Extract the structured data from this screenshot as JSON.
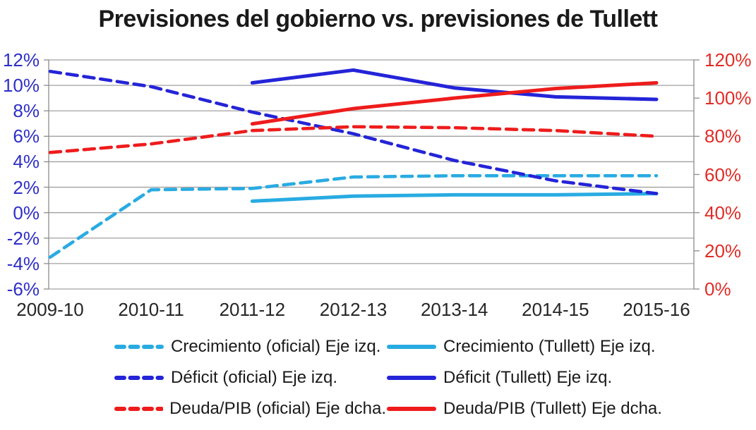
{
  "chart_data": {
    "type": "line",
    "title": "Previsiones del gobierno vs. previsiones de Tullett",
    "categories": [
      "2009-10",
      "2010-11",
      "2011-12",
      "2012-13",
      "2013-14",
      "2014-15",
      "2015-16"
    ],
    "left_axis": {
      "tick_labels": [
        "12%",
        "10%",
        "8%",
        "6%",
        "4%",
        "2%",
        "0%",
        "-2%",
        "-4%",
        "-6%"
      ],
      "tick_values": [
        12,
        10,
        8,
        6,
        4,
        2,
        0,
        -2,
        -4,
        -6
      ],
      "min": -6,
      "max": 12,
      "color": "#2e2ec8"
    },
    "right_axis": {
      "tick_labels": [
        "120%",
        "100%",
        "80%",
        "60%",
        "40%",
        "20%",
        "0%"
      ],
      "tick_values": [
        120,
        100,
        80,
        60,
        40,
        20,
        0
      ],
      "min": 0,
      "max": 120,
      "color": "#e02c26"
    },
    "series": [
      {
        "name": "Crecimiento (oficial) Eje izq.",
        "axis": "left",
        "style": "dashed",
        "color": "#29abe2",
        "values": [
          -3.5,
          1.8,
          1.9,
          2.8,
          2.9,
          2.9,
          2.9
        ]
      },
      {
        "name": "Crecimiento (Tullett) Eje izq.",
        "axis": "left",
        "style": "solid",
        "color": "#29abe2",
        "values": [
          null,
          null,
          0.9,
          1.3,
          1.4,
          1.4,
          1.5
        ]
      },
      {
        "name": "Déficit (oficial) Eje izq.",
        "axis": "left",
        "style": "dashed",
        "color": "#2424d8",
        "values": [
          11.1,
          9.9,
          7.9,
          6.2,
          4.1,
          2.5,
          1.5
        ]
      },
      {
        "name": "Déficit (Tullett) Eje izq.",
        "axis": "left",
        "style": "solid",
        "color": "#2424d8",
        "values": [
          null,
          null,
          10.2,
          11.2,
          9.8,
          9.1,
          8.9
        ]
      },
      {
        "name": "Deuda/PIB (oficial) Eje dcha.",
        "axis": "right",
        "style": "dashed",
        "color": "#ee1c1c",
        "values": [
          71.5,
          76,
          83,
          85,
          84.5,
          83,
          80
        ]
      },
      {
        "name": "Deuda/PIB (Tullett) Eje dcha.",
        "axis": "right",
        "style": "solid",
        "color": "#ee1c1c",
        "values": [
          null,
          null,
          86.5,
          94.5,
          100,
          105,
          108
        ]
      }
    ],
    "grid": "horizontal",
    "legend_position": "bottom",
    "gridline_color": "#a0a0a0"
  }
}
